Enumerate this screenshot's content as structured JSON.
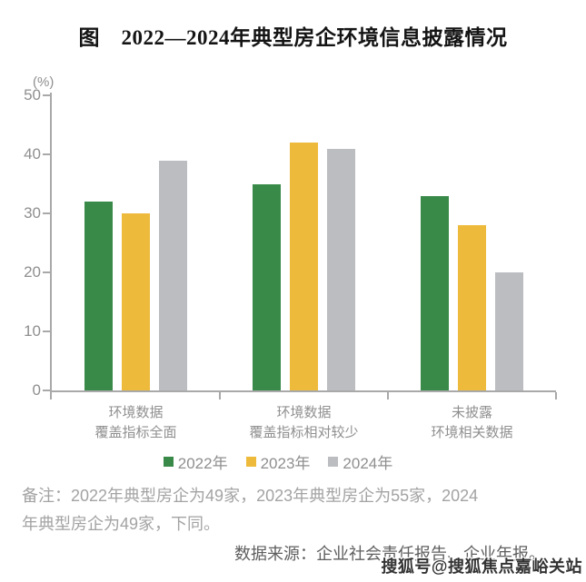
{
  "title": "图　2022—2024年典型房企环境信息披露情况",
  "chart_data": {
    "type": "bar",
    "title": "图　2022—2024年典型房企环境信息披露情况",
    "ylabel": "(%)",
    "xlabel": "",
    "ylim": [
      0,
      50
    ],
    "yticks": [
      0,
      10,
      20,
      30,
      40,
      50
    ],
    "grid": false,
    "legend_position": "bottom",
    "categories": [
      {
        "line1": "环境数据",
        "line2": "覆盖指标全面"
      },
      {
        "line1": "环境数据",
        "line2": "覆盖指标相对较少"
      },
      {
        "line1": "未披露",
        "line2": "环境相关数据"
      }
    ],
    "series": [
      {
        "name": "2022年",
        "color": "#398a49",
        "values": [
          32,
          35,
          33
        ]
      },
      {
        "name": "2023年",
        "color": "#edba3b",
        "values": [
          30,
          42,
          28
        ]
      },
      {
        "name": "2024年",
        "color": "#bbbdc1",
        "values": [
          39,
          41,
          20
        ]
      }
    ]
  },
  "note": {
    "lines": [
      "备注：2022年典型房企为49家，2023年典型房企为55家，2024",
      "年典型房企为49家，下同。"
    ]
  },
  "source": "数据来源：企业社会责任报告、企业年报。",
  "watermark": "搜狐号@搜狐焦点嘉峪关站",
  "colors": {
    "axis": "#a9a9a9",
    "tick_label": "#8f8f8f",
    "category_label": "#8f8f8f",
    "legend_label": "#8f8f8f",
    "note_text": "#a3a3a3",
    "source_text": "#5f5f5f",
    "watermark_text": "#333333",
    "title_text": "#141414"
  }
}
